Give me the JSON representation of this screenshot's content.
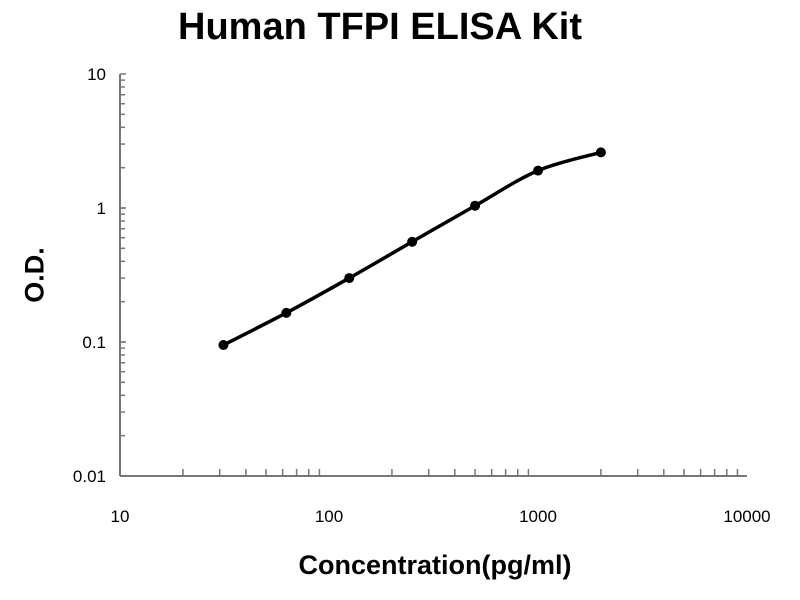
{
  "chart_data": {
    "type": "line",
    "title": "Human TFPI ELISA Kit",
    "xlabel": "Concentration(pg/ml)",
    "ylabel": "O.D.",
    "x_scale": "log",
    "y_scale": "log",
    "xlim": [
      10,
      10000
    ],
    "ylim": [
      0.01,
      10
    ],
    "x_ticks": [
      "10",
      "100",
      "1000",
      "10000"
    ],
    "y_ticks": [
      "10",
      "1",
      "0.1",
      "0.01"
    ],
    "grid": false,
    "line_color": "#000000",
    "series": [
      {
        "x": [
          31.25,
          62.5,
          125,
          250,
          500,
          1000,
          2000
        ],
        "y": [
          0.095,
          0.165,
          0.3,
          0.56,
          1.04,
          1.9,
          2.6
        ]
      }
    ]
  }
}
